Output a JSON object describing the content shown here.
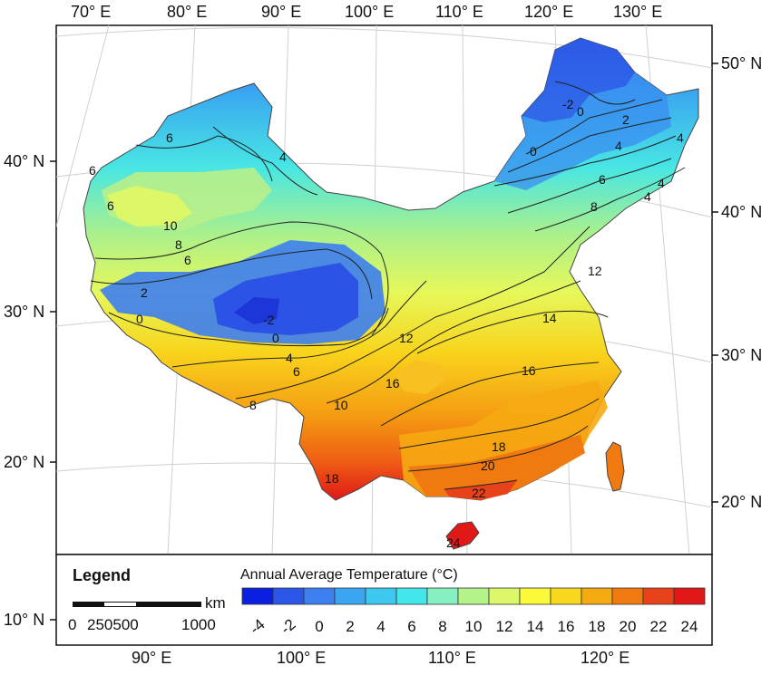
{
  "map": {
    "top_lon_labels": [
      "70° E",
      "80° E",
      "90° E",
      "100° E",
      "110° E",
      "120° E",
      "130° E"
    ],
    "bottom_lon_labels": [
      "90° E",
      "100° E",
      "110° E",
      "120° E"
    ],
    "left_lat_labels": [
      "40° N",
      "30° N",
      "20° N",
      "10° N"
    ],
    "right_lat_labels": [
      "50° N",
      "40° N",
      "30° N",
      "20° N"
    ],
    "contour_labels": [
      "6",
      "6",
      "4",
      "6",
      "10",
      "8",
      "6",
      "2",
      "0",
      "-2",
      "0",
      "4",
      "6",
      "8",
      "10",
      "12",
      "16",
      "14",
      "16",
      "12",
      "18",
      "20",
      "22",
      "24",
      "18",
      "0",
      "-2",
      "0",
      "2",
      "4",
      "4",
      "6",
      "4",
      "4",
      "8"
    ]
  },
  "legend": {
    "title": "Legend",
    "scale": {
      "zero": "0",
      "ticks": "250500",
      "end": "1000",
      "unit": "km"
    },
    "colorbar_title": "Annual Average Temperature (°C)",
    "ticks": [
      "-4",
      "-2",
      "0",
      "2",
      "4",
      "6",
      "8",
      "10",
      "12",
      "14",
      "16",
      "18",
      "20",
      "22",
      "24"
    ],
    "colors": [
      "#0a1fe0",
      "#2c56e8",
      "#3d7ef0",
      "#3aa6f2",
      "#3cc8f0",
      "#43e6ea",
      "#86f0c0",
      "#b4f28a",
      "#dcf86a",
      "#fafa3a",
      "#f8d81c",
      "#f6aa12",
      "#f07a10",
      "#e8421a",
      "#e01818"
    ]
  }
}
